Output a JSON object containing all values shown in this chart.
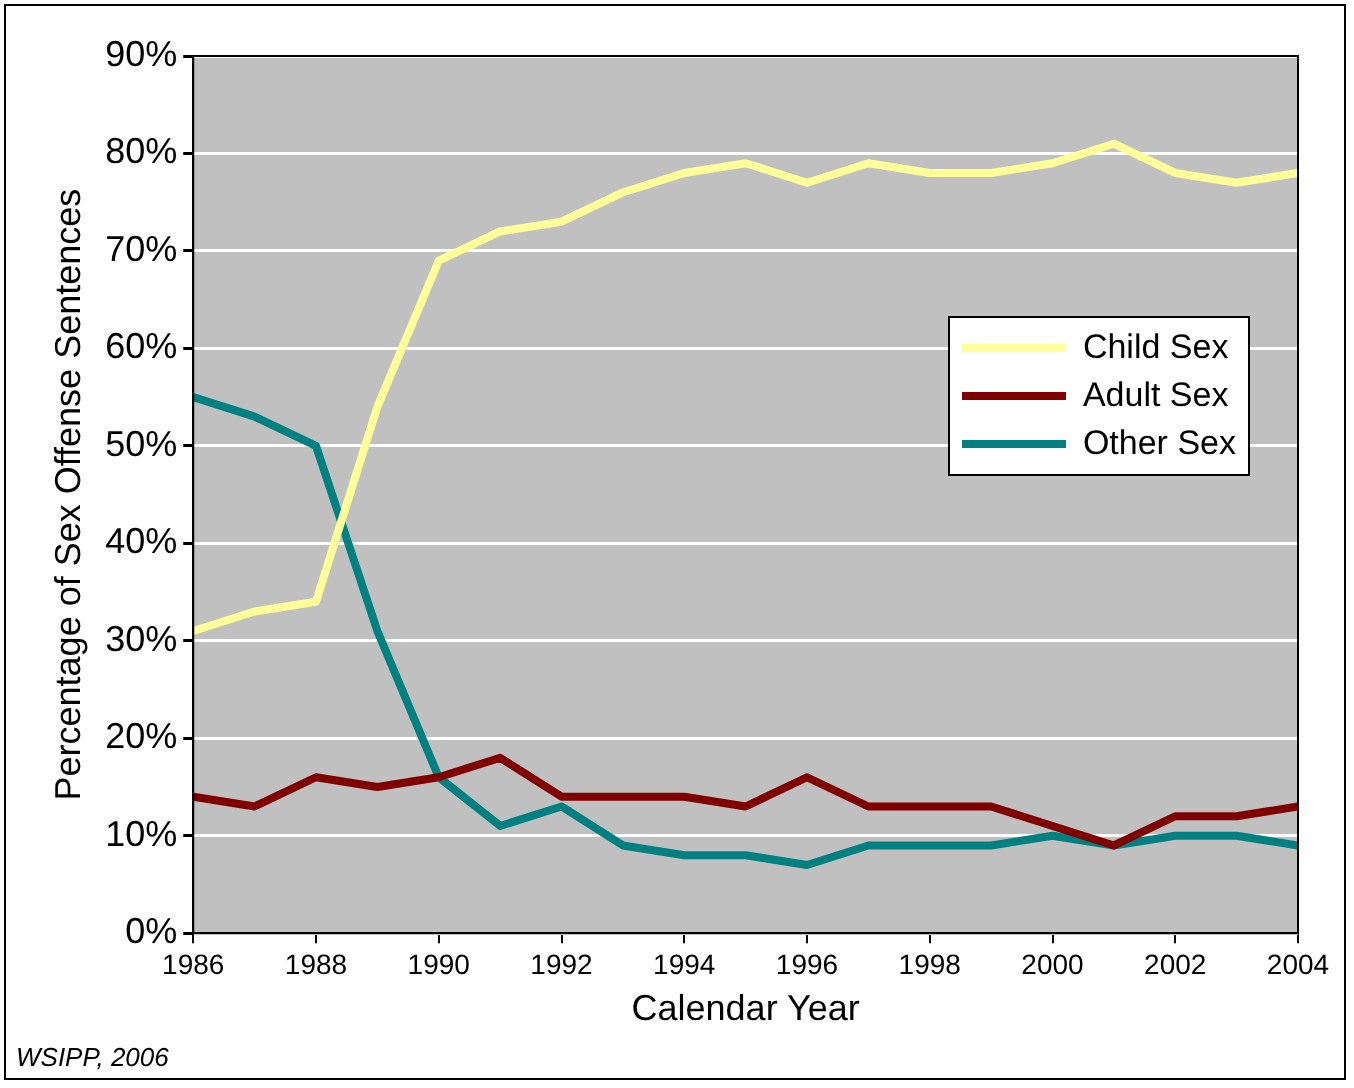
{
  "chart_data": {
    "type": "line",
    "xlabel": "Calendar Year",
    "ylabel": "Percentage of Sex Offense Sentences",
    "x": [
      1986,
      1987,
      1988,
      1989,
      1990,
      1991,
      1992,
      1993,
      1994,
      1995,
      1996,
      1997,
      1998,
      1999,
      2000,
      2001,
      2002,
      2003,
      2004
    ],
    "series": [
      {
        "name": "Child Sex",
        "color": "#ffff99",
        "values": [
          31,
          33,
          34,
          54,
          69,
          72,
          73,
          76,
          78,
          79,
          77,
          79,
          78,
          78,
          79,
          81,
          78,
          77,
          78
        ]
      },
      {
        "name": "Adult Sex",
        "color": "#800000",
        "values": [
          14,
          13,
          16,
          15,
          16,
          18,
          14,
          14,
          14,
          13,
          16,
          13,
          13,
          13,
          11,
          9,
          12,
          12,
          13
        ]
      },
      {
        "name": "Other Sex",
        "color": "#008080",
        "values": [
          55,
          53,
          50,
          31,
          16,
          11,
          13,
          9,
          8,
          8,
          7,
          9,
          9,
          9,
          10,
          9,
          10,
          10,
          9
        ]
      }
    ],
    "xlim": [
      1986,
      2004
    ],
    "xticks": [
      1986,
      1988,
      1990,
      1992,
      1994,
      1996,
      1998,
      2000,
      2002,
      2004
    ],
    "ylim": [
      0,
      90
    ],
    "yticks": [
      {
        "value": 0,
        "label": "0%"
      },
      {
        "value": 10,
        "label": "10%"
      },
      {
        "value": 20,
        "label": "20%"
      },
      {
        "value": 30,
        "label": "30%"
      },
      {
        "value": 40,
        "label": "40%"
      },
      {
        "value": 50,
        "label": "50%"
      },
      {
        "value": 60,
        "label": "60%"
      },
      {
        "value": 70,
        "label": "70%"
      },
      {
        "value": 80,
        "label": "80%"
      },
      {
        "value": 90,
        "label": "90%"
      }
    ],
    "grid": "y",
    "legend": "right",
    "marker": "none",
    "line_style": "solid",
    "annotations": [
      "WSIPP, 2006"
    ]
  }
}
